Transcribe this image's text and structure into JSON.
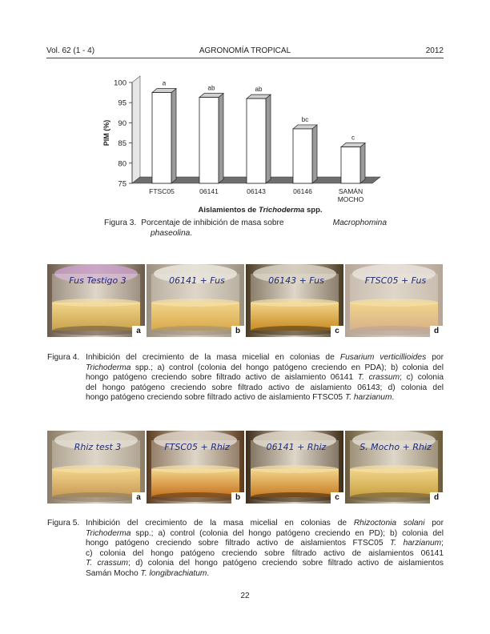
{
  "header": {
    "volume": "Vol. 62 (1 - 4)",
    "journal": "AGRONOMÍA TROPICAL",
    "year": "2012"
  },
  "chart_data": {
    "type": "bar",
    "categories": [
      "FTSC05",
      "06141",
      "06143",
      "06146",
      "SAMÁN MOCHO"
    ],
    "values": [
      97.5,
      96.3,
      96.0,
      88.5,
      84.0
    ],
    "letters": [
      "a",
      "ab",
      "ab",
      "bc",
      "c"
    ],
    "ylabel": "PIM (%)",
    "xlabel_prefix": "Aislamientos de ",
    "xlabel_italic": "Trichoderma",
    "xlabel_suffix": " spp.",
    "ylim": [
      75,
      100
    ],
    "yticks": [
      75,
      80,
      85,
      90,
      95,
      100
    ],
    "style": "3d"
  },
  "figure3": {
    "label": "Figura 3.",
    "text": "Porcentaje de inhibición de masa sobre ",
    "italic": "Macrophomina",
    "line2_italic": "phaseolina",
    "line2_end": "."
  },
  "figure4": {
    "photos": [
      {
        "tag": "a",
        "note": "Fus Testigo 3"
      },
      {
        "tag": "b",
        "note": "06141 + Fus"
      },
      {
        "tag": "c",
        "note": "06143 + Fus"
      },
      {
        "tag": "d",
        "note": "FTSC05 + Fus"
      }
    ],
    "label": "Figura 4.",
    "lines": [
      {
        "a": "Inhibición del crecimiento de la masa micelial en colonias de ",
        "ai": "Fusarium verticillioides",
        "b": " por"
      },
      {
        "ai": "Trichoderma",
        "b": " spp.; a) control (colonia del hongo patógeno creciendo en PDA); b) colonia del"
      },
      {
        "a": "hongo patógeno creciendo sobre filtrado activo de aislamiento 06141 ",
        "ai": "T. crassum",
        "b": "; c) colonia"
      },
      {
        "a": "del hongo patógeno creciendo sobre filtrado activo de aislamiento 06143; d) colonia del"
      },
      {
        "a": "hongo patógeno creciendo sobre filtrado activo de aislamiento FTSC05 ",
        "ai": "T. harzianum",
        "b": "."
      }
    ]
  },
  "figure5": {
    "photos": [
      {
        "tag": "a",
        "note": "Rhiz test 3"
      },
      {
        "tag": "b",
        "note": "FTSC05 + Rhiz"
      },
      {
        "tag": "c",
        "note": "06141 + Rhiz"
      },
      {
        "tag": "d",
        "note": "S. Mocho + Rhiz"
      }
    ],
    "label": "Figura 5.",
    "lines": [
      {
        "a": "Inhibición del crecimiento de la masa micelial en colonias de ",
        "ai": "Rhizoctonia solani",
        "b": " por"
      },
      {
        "ai": "Trichoderma",
        "b": " spp.; a) control (colonia del hongo patógeno creciendo en PD); b) colonia del"
      },
      {
        "a": "hongo patógeno creciendo sobre filtrado activo de aislamientos FTSC05 ",
        "ai": "T. harzianum",
        "b": ";"
      },
      {
        "a": "c) colonia del hongo patógeno creciendo sobre filtrado activo de aislamientos 06141"
      },
      {
        "ai": "T. crassum",
        "b": "; d) colonia del hongo patógeno creciendo sobre filtrado activo de aislamientos"
      },
      {
        "a": "Samán Mocho ",
        "ai": "T. longibrachiatum",
        "b": "."
      }
    ]
  },
  "page_number": "22"
}
